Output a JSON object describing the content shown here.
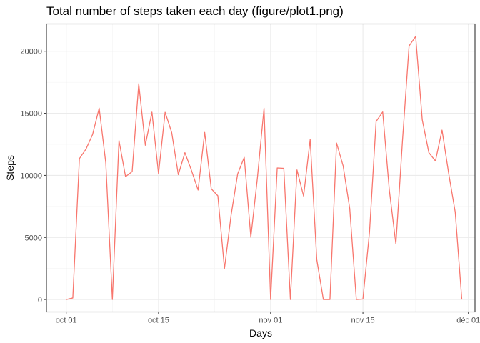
{
  "chart_data": {
    "type": "line",
    "title": "Total number of steps taken each day (figure/plot1.png)",
    "xlabel": "Days",
    "ylabel": "Steps",
    "x_type": "date",
    "xlim": [
      "2012-09-28",
      "2012-12-02"
    ],
    "ylim": [
      -1000,
      22200
    ],
    "x_ticks": [
      {
        "date": "2012-10-01",
        "label": "oct 01"
      },
      {
        "date": "2012-10-15",
        "label": "oct 15"
      },
      {
        "date": "2012-11-01",
        "label": "nov 01"
      },
      {
        "date": "2012-11-15",
        "label": "nov 15"
      },
      {
        "date": "2012-12-01",
        "label": "déc 01"
      }
    ],
    "y_ticks": [
      0,
      5000,
      10000,
      15000,
      20000
    ],
    "y_tick_labels": [
      "0",
      "5000",
      "10000",
      "15000",
      "20000"
    ],
    "grid": true,
    "legend": "none",
    "series": [
      {
        "color": "#f8766d",
        "x": [
          "2012-10-01",
          "2012-10-02",
          "2012-10-03",
          "2012-10-04",
          "2012-10-05",
          "2012-10-06",
          "2012-10-07",
          "2012-10-08",
          "2012-10-09",
          "2012-10-10",
          "2012-10-11",
          "2012-10-12",
          "2012-10-13",
          "2012-10-14",
          "2012-10-15",
          "2012-10-16",
          "2012-10-17",
          "2012-10-18",
          "2012-10-19",
          "2012-10-20",
          "2012-10-21",
          "2012-10-22",
          "2012-10-23",
          "2012-10-24",
          "2012-10-25",
          "2012-10-26",
          "2012-10-27",
          "2012-10-28",
          "2012-10-29",
          "2012-10-30",
          "2012-10-31",
          "2012-11-01",
          "2012-11-02",
          "2012-11-03",
          "2012-11-04",
          "2012-11-05",
          "2012-11-06",
          "2012-11-07",
          "2012-11-08",
          "2012-11-09",
          "2012-11-10",
          "2012-11-11",
          "2012-11-12",
          "2012-11-13",
          "2012-11-14",
          "2012-11-15",
          "2012-11-16",
          "2012-11-17",
          "2012-11-18",
          "2012-11-19",
          "2012-11-20",
          "2012-11-21",
          "2012-11-22",
          "2012-11-23",
          "2012-11-24",
          "2012-11-25",
          "2012-11-26",
          "2012-11-27",
          "2012-11-28",
          "2012-11-29",
          "2012-11-30"
        ],
        "y": [
          0,
          126,
          11352,
          12116,
          13294,
          15420,
          11015,
          0,
          12811,
          9900,
          10304,
          17382,
          12426,
          15098,
          10139,
          15084,
          13452,
          10056,
          11829,
          10395,
          8821,
          13460,
          8918,
          8355,
          2492,
          6778,
          10119,
          11458,
          5018,
          9819,
          15414,
          0,
          10600,
          10571,
          0,
          10439,
          8334,
          12883,
          3219,
          0,
          0,
          12608,
          10765,
          7336,
          0,
          41,
          5441,
          14339,
          15110,
          8841,
          4472,
          12787,
          20427,
          21194,
          14478,
          11834,
          11162,
          13646,
          10183,
          7047,
          0
        ]
      }
    ]
  }
}
